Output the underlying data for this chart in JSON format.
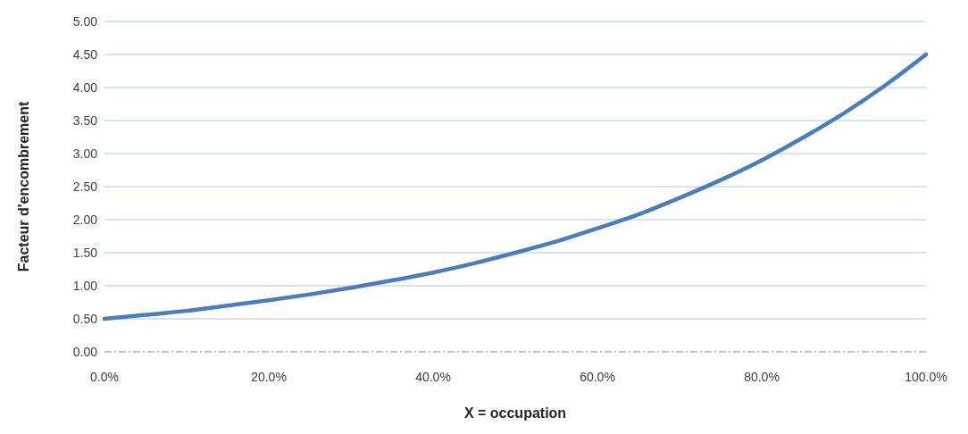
{
  "chart_data": {
    "type": "line",
    "xlabel": "X = occupation",
    "ylabel": "Facteur d'encombrement",
    "x": [
      0,
      5,
      10,
      15,
      20,
      25,
      30,
      35,
      40,
      45,
      50,
      55,
      60,
      65,
      70,
      75,
      80,
      85,
      90,
      95,
      100
    ],
    "series": [
      {
        "color": "#4a7ebb",
        "values": [
          0.5,
          0.56,
          0.62,
          0.7,
          0.78,
          0.87,
          0.97,
          1.08,
          1.2,
          1.34,
          1.5,
          1.67,
          1.87,
          2.08,
          2.33,
          2.6,
          2.9,
          3.24,
          3.61,
          4.03,
          4.5
        ]
      }
    ],
    "xlim": [
      0,
      100
    ],
    "xticks": [
      {
        "value": 0,
        "label": "0.0%"
      },
      {
        "value": 20,
        "label": "20.0%"
      },
      {
        "value": 40,
        "label": "40.0%"
      },
      {
        "value": 60,
        "label": "60.0%"
      },
      {
        "value": 80,
        "label": "80.0%"
      },
      {
        "value": 100,
        "label": "100.0%"
      }
    ],
    "ylim": [
      0,
      5
    ],
    "yticks": [
      {
        "value": 0,
        "label": "0.00"
      },
      {
        "value": 0.5,
        "label": "0.50"
      },
      {
        "value": 1,
        "label": "1.00"
      },
      {
        "value": 1.5,
        "label": "1.50"
      },
      {
        "value": 2,
        "label": "2.00"
      },
      {
        "value": 2.5,
        "label": "2.50"
      },
      {
        "value": 3,
        "label": "3.00"
      },
      {
        "value": 3.5,
        "label": "3.50"
      },
      {
        "value": 4,
        "label": "4.00"
      },
      {
        "value": 4.5,
        "label": "4.50"
      },
      {
        "value": 5,
        "label": "5.00"
      }
    ],
    "grid": "y",
    "marker": "none",
    "line_style": "solid"
  }
}
